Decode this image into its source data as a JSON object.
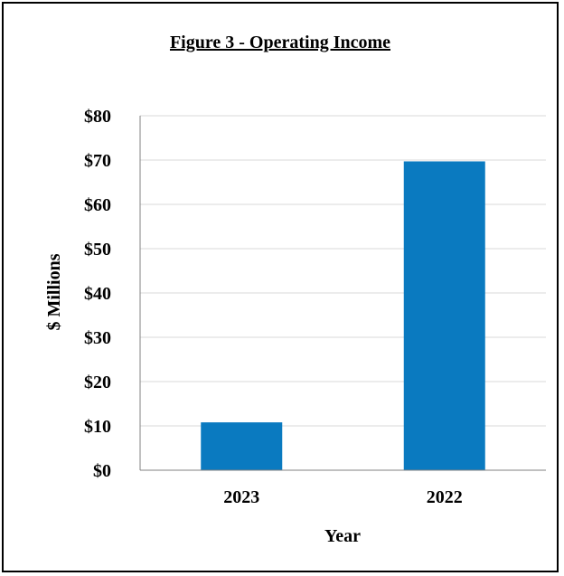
{
  "chart_data": {
    "type": "bar",
    "title": "Figure 3 - Operating Income",
    "xlabel": "Year",
    "ylabel": "$ Millions",
    "categories": [
      "2023",
      "2022"
    ],
    "values": [
      10.8,
      69.7
    ],
    "ylim": [
      0,
      80
    ],
    "yticks": [
      0,
      10,
      20,
      30,
      40,
      50,
      60,
      70,
      80
    ],
    "ytick_labels": [
      "$0",
      "$10",
      "$20",
      "$30",
      "$40",
      "$50",
      "$60",
      "$70",
      "$80"
    ],
    "grid": true,
    "legend": "none",
    "colors": {
      "bar": "#0A7AC0",
      "grid": "#D9D9D9",
      "axis": "#808080",
      "border": "#000000"
    }
  }
}
